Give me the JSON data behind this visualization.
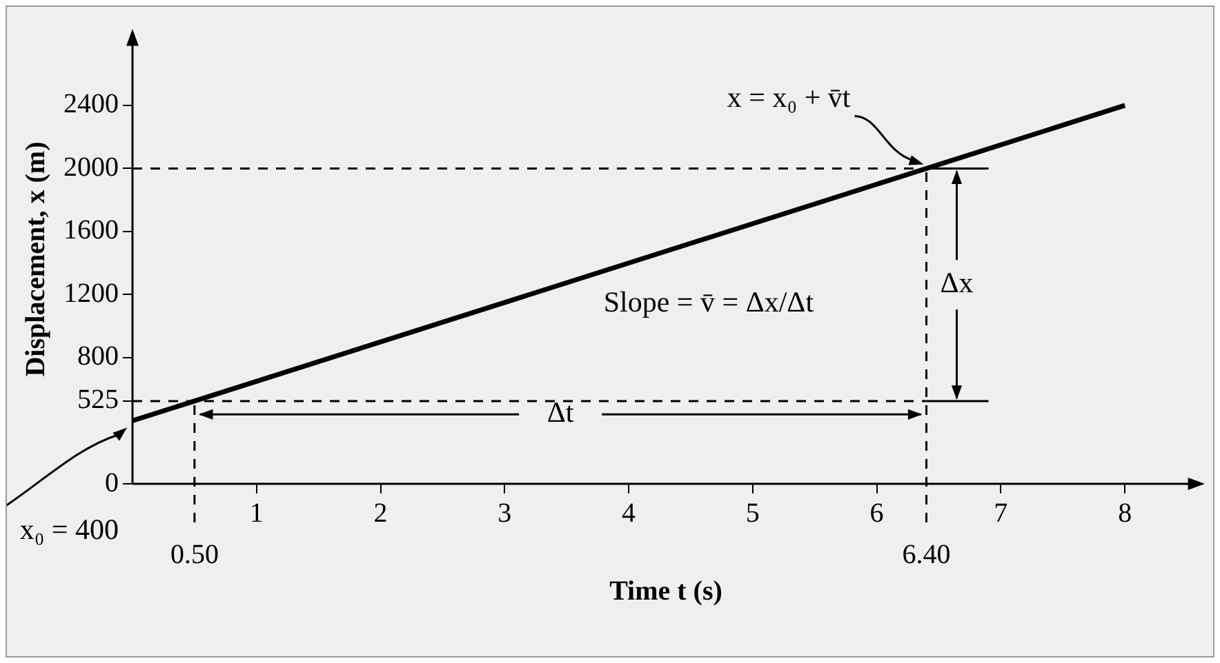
{
  "chart_data": {
    "type": "line",
    "xlabel": "Time t (s)",
    "ylabel": "Displacement, x (m)",
    "series": [
      {
        "type": "line",
        "color": "#000000",
        "x": [
          0,
          8
        ],
        "values": [
          400,
          2400
        ]
      }
    ],
    "xlim": [
      0,
      8.6
    ],
    "ylim": [
      0,
      2850
    ],
    "xticks": [
      1,
      2,
      3,
      4,
      5,
      6,
      7,
      8
    ],
    "yticks": [
      0,
      525,
      800,
      1200,
      1600,
      2000,
      2400
    ],
    "ref_lines": [
      {
        "axis": "y",
        "value": 525,
        "line_style": "dashed"
      },
      {
        "axis": "y",
        "value": 2000,
        "line_style": "dashed"
      },
      {
        "axis": "x",
        "value": 0.5,
        "label": "0.50",
        "line_style": "dashed"
      },
      {
        "axis": "x",
        "value": 6.4,
        "label": "6.40",
        "line_style": "dashed"
      }
    ],
    "annotations": [
      "x = x₀ + v̄t",
      "x₀ = 400",
      "Δx",
      {
        "text": "Δt",
        "x": 6.4,
        "y": 440
      },
      "Slope = v̄ = Δx/Δt"
    ],
    "grid": false,
    "legend": false,
    "marker": "none",
    "line_style": "solid"
  }
}
